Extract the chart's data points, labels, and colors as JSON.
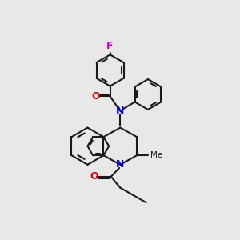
{
  "bg_color": "#e8e8e8",
  "bond_color": "#1a1a1a",
  "N_color": "#0000dd",
  "O_color": "#dd0000",
  "F_color": "#cc00cc",
  "lw": 1.5,
  "xlim": [
    0,
    10
  ],
  "ylim": [
    0,
    10
  ]
}
